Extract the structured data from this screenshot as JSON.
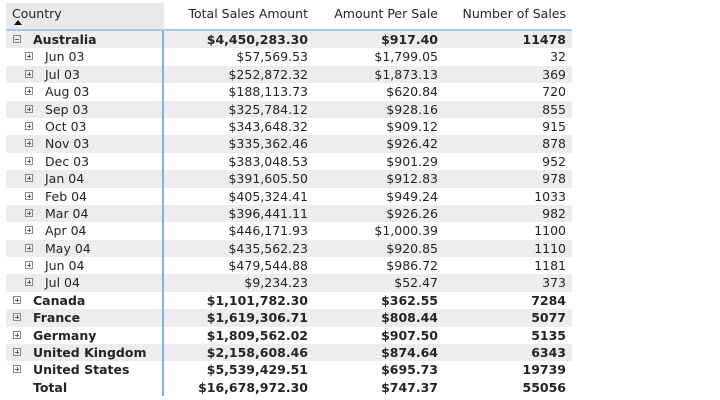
{
  "columns": {
    "country": "Country",
    "total_sales": "Total Sales Amount",
    "amount_per_sale": "Amount Per Sale",
    "num_sales": "Number of Sales",
    "sort_indicator": "sort-ascending"
  },
  "rows": [
    {
      "label": "Australia",
      "level": 0,
      "expanded": true,
      "total_sales": "$4,450,283.30",
      "amount_per_sale": "$917.40",
      "num_sales": "11478"
    },
    {
      "label": "Jun 03",
      "level": 1,
      "total_sales": "$57,569.53",
      "amount_per_sale": "$1,799.05",
      "num_sales": "32"
    },
    {
      "label": "Jul 03",
      "level": 1,
      "total_sales": "$252,872.32",
      "amount_per_sale": "$1,873.13",
      "num_sales": "369"
    },
    {
      "label": "Aug 03",
      "level": 1,
      "total_sales": "$188,113.73",
      "amount_per_sale": "$620.84",
      "num_sales": "720"
    },
    {
      "label": "Sep 03",
      "level": 1,
      "total_sales": "$325,784.12",
      "amount_per_sale": "$928.16",
      "num_sales": "855"
    },
    {
      "label": "Oct 03",
      "level": 1,
      "total_sales": "$343,648.32",
      "amount_per_sale": "$909.12",
      "num_sales": "915"
    },
    {
      "label": "Nov 03",
      "level": 1,
      "total_sales": "$335,362.46",
      "amount_per_sale": "$926.42",
      "num_sales": "878"
    },
    {
      "label": "Dec 03",
      "level": 1,
      "total_sales": "$383,048.53",
      "amount_per_sale": "$901.29",
      "num_sales": "952"
    },
    {
      "label": "Jan 04",
      "level": 1,
      "total_sales": "$391,605.50",
      "amount_per_sale": "$912.83",
      "num_sales": "978"
    },
    {
      "label": "Feb 04",
      "level": 1,
      "total_sales": "$405,324.41",
      "amount_per_sale": "$949.24",
      "num_sales": "1033"
    },
    {
      "label": "Mar 04",
      "level": 1,
      "total_sales": "$396,441.11",
      "amount_per_sale": "$926.26",
      "num_sales": "982"
    },
    {
      "label": "Apr 04",
      "level": 1,
      "total_sales": "$446,171.93",
      "amount_per_sale": "$1,000.39",
      "num_sales": "1100"
    },
    {
      "label": "May 04",
      "level": 1,
      "total_sales": "$435,562.23",
      "amount_per_sale": "$920.85",
      "num_sales": "1110"
    },
    {
      "label": "Jun 04",
      "level": 1,
      "total_sales": "$479,544.88",
      "amount_per_sale": "$986.72",
      "num_sales": "1181"
    },
    {
      "label": "Jul 04",
      "level": 1,
      "total_sales": "$9,234.23",
      "amount_per_sale": "$52.47",
      "num_sales": "373"
    },
    {
      "label": "Canada",
      "level": 0,
      "expanded": false,
      "total_sales": "$1,101,782.30",
      "amount_per_sale": "$362.55",
      "num_sales": "7284"
    },
    {
      "label": "France",
      "level": 0,
      "expanded": false,
      "total_sales": "$1,619,306.71",
      "amount_per_sale": "$808.44",
      "num_sales": "5077"
    },
    {
      "label": "Germany",
      "level": 0,
      "expanded": false,
      "total_sales": "$1,809,562.02",
      "amount_per_sale": "$907.50",
      "num_sales": "5135"
    },
    {
      "label": "United Kingdom",
      "level": 0,
      "expanded": false,
      "total_sales": "$2,158,608.46",
      "amount_per_sale": "$874.64",
      "num_sales": "6343"
    },
    {
      "label": "United States",
      "level": 0,
      "expanded": false,
      "total_sales": "$5,539,429.51",
      "amount_per_sale": "$695.73",
      "num_sales": "19739"
    }
  ],
  "total": {
    "label": "Total",
    "total_sales": "$16,678,972.30",
    "amount_per_sale": "$747.37",
    "num_sales": "55056"
  },
  "colors": {
    "header_bg": "#e9e9e9",
    "alt_row_bg": "#eeedee",
    "accent_line": "#7fb3e6"
  }
}
